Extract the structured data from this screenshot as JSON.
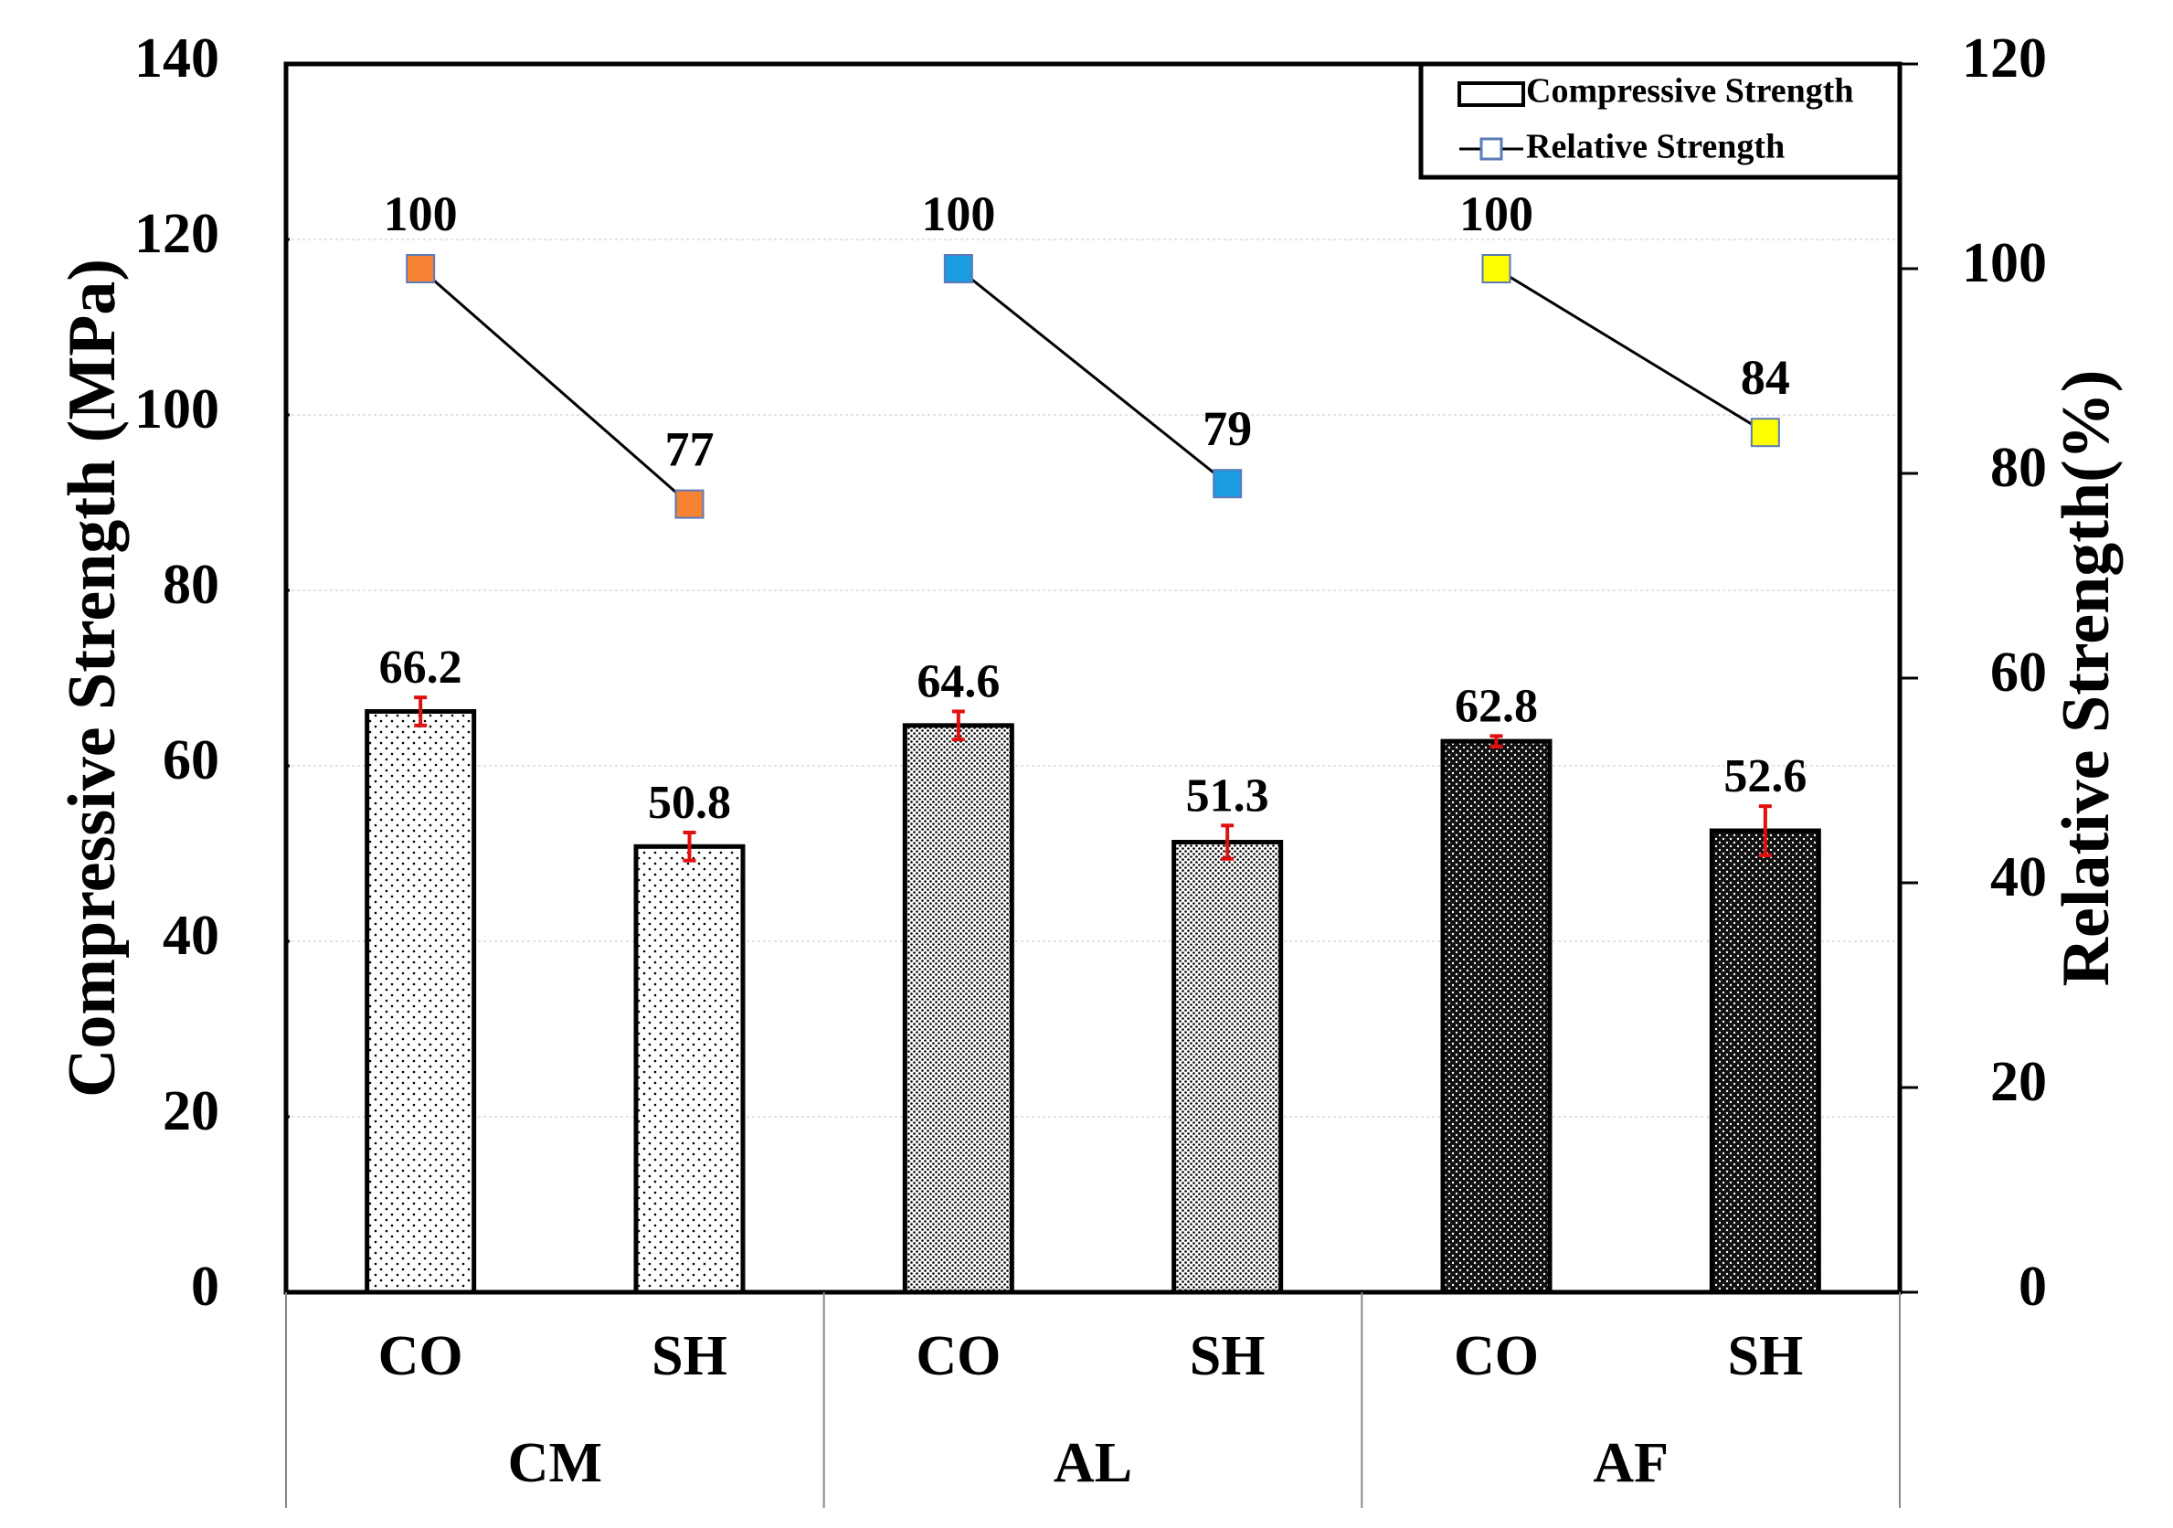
{
  "chart_data": {
    "type": "bar",
    "title": "",
    "xlabel": "",
    "ylabel": "Compressive Strength (MPa)",
    "y2label": "Relative Strength(%)",
    "ylim": [
      0,
      140
    ],
    "y2lim": [
      0,
      120
    ],
    "yticks": [
      "0",
      "20",
      "40",
      "60",
      "80",
      "100",
      "120",
      "140"
    ],
    "y2ticks": [
      "0",
      "20",
      "40",
      "60",
      "80",
      "100",
      "120"
    ],
    "grid": true,
    "legend_position": "top-right",
    "groups": [
      {
        "name": "CM",
        "categories": [
          "CO",
          "SH"
        ],
        "compressive": [
          66.2,
          50.8
        ],
        "compressive_labels": [
          "66.2",
          "50.8"
        ],
        "error": [
          1.6,
          1.6
        ],
        "relative": [
          100,
          77
        ],
        "relative_labels": [
          "100",
          "77"
        ],
        "marker_color": "#f58133",
        "bar_pattern": "sparse-dots"
      },
      {
        "name": "AL",
        "categories": [
          "CO",
          "SH"
        ],
        "compressive": [
          64.6,
          51.3
        ],
        "compressive_labels": [
          "64.6",
          "51.3"
        ],
        "error": [
          1.6,
          1.9
        ],
        "relative": [
          100,
          79
        ],
        "relative_labels": [
          "100",
          "79"
        ],
        "marker_color": "#1b9be0",
        "bar_pattern": "dense-dots"
      },
      {
        "name": "AF",
        "categories": [
          "CO",
          "SH"
        ],
        "compressive": [
          62.8,
          52.6
        ],
        "compressive_labels": [
          "62.8",
          "52.6"
        ],
        "error": [
          0.6,
          2.8
        ],
        "relative": [
          100,
          84
        ],
        "relative_labels": [
          "100",
          "84"
        ],
        "marker_color": "#ffff00",
        "bar_pattern": "dark-checker"
      }
    ],
    "series": [
      {
        "name": "Compressive Strength",
        "kind": "bar"
      },
      {
        "name": "Relative Strength",
        "kind": "line"
      }
    ],
    "colors": {
      "error_bar": "#e01010",
      "line": "#000000",
      "marker_border": "#5a7ab8"
    }
  }
}
